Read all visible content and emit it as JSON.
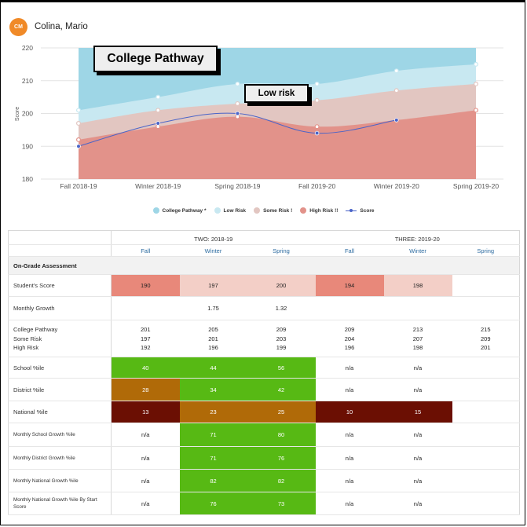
{
  "student": {
    "initials": "CM",
    "name": "Colina, Mario"
  },
  "colors": {
    "college_pathway": "#9ed6e6",
    "low_risk": "#c8e8f1",
    "some_risk": "#e2c6c1",
    "high_risk": "#e2928a",
    "score": "#4a64c8",
    "cell_very_high_risk": "#e8887a",
    "cell_some_risk": "#f3cfc7",
    "cell_green": "#57b914",
    "cell_orange": "#b06a08",
    "cell_dark_red": "#6b0f03"
  },
  "callouts": {
    "college_pathway": "College Pathway",
    "low_risk": "Low risk"
  },
  "chart_data": {
    "type": "area",
    "title": "",
    "xlabel": "",
    "ylabel": "Score",
    "ylim": [
      180,
      220
    ],
    "yticks": [
      "180",
      "190",
      "200",
      "210",
      "220"
    ],
    "grid": true,
    "legend_position": "bottom",
    "categories": [
      "Fall 2018-19",
      "Winter 2018-19",
      "Spring 2018-19",
      "Fall 2019-20",
      "Winter 2019-20",
      "Spring 2019-20"
    ],
    "series": [
      {
        "name": "College Pathway *",
        "kind": "area",
        "color": "#9ed6e6",
        "values": [
          220,
          220,
          220,
          220,
          220,
          220
        ]
      },
      {
        "name": "Low Risk",
        "kind": "area",
        "color": "#c8e8f1",
        "values": [
          201,
          205,
          209,
          209,
          213,
          215
        ]
      },
      {
        "name": "Some Risk !",
        "kind": "area",
        "color": "#e2c6c1",
        "values": [
          197,
          201,
          203,
          204,
          207,
          209
        ]
      },
      {
        "name": "High Risk !!",
        "kind": "area",
        "color": "#e2928a",
        "values": [
          192,
          196,
          199,
          196,
          198,
          201
        ]
      },
      {
        "name": "Score",
        "kind": "line",
        "color": "#4a64c8",
        "values": [
          190,
          197,
          200,
          194,
          198,
          null
        ]
      }
    ]
  },
  "table": {
    "years": [
      {
        "label": "TWO: 2018-19"
      },
      {
        "label": "THREE: 2019-20"
      }
    ],
    "seasons": [
      "Fall",
      "Winter",
      "Spring",
      "Fall",
      "Winter",
      "Spring"
    ],
    "section_label": "On-Grade Assessment",
    "students_score": {
      "label": "Student's Score",
      "values": [
        "190",
        "197",
        "200",
        "194",
        "198",
        ""
      ]
    },
    "monthly_growth": {
      "label": "Monthly Growth",
      "values": [
        "",
        "1.75",
        "1.32",
        "",
        "",
        ""
      ]
    },
    "benchmarks": [
      {
        "label": "College Pathway",
        "values": [
          "201",
          "205",
          "209",
          "209",
          "213",
          "215"
        ]
      },
      {
        "label": "Some Risk",
        "values": [
          "197",
          "201",
          "203",
          "204",
          "207",
          "209"
        ]
      },
      {
        "label": "High Risk",
        "values": [
          "192",
          "196",
          "199",
          "196",
          "198",
          "201"
        ]
      }
    ],
    "percentiles": [
      {
        "label": "School %ile",
        "values": [
          "40",
          "44",
          "56",
          "n/a",
          "n/a",
          ""
        ]
      },
      {
        "label": "District %ile",
        "values": [
          "28",
          "34",
          "42",
          "n/a",
          "n/a",
          ""
        ]
      },
      {
        "label": "National %ile",
        "values": [
          "13",
          "23",
          "25",
          "10",
          "15",
          ""
        ]
      },
      {
        "label": "Monthly School Growth %ile",
        "values": [
          "n/a",
          "71",
          "80",
          "n/a",
          "n/a",
          ""
        ]
      },
      {
        "label": "Monthly District Growth %ile",
        "values": [
          "n/a",
          "71",
          "76",
          "n/a",
          "n/a",
          ""
        ]
      },
      {
        "label": "Monthly National Growth %ile",
        "values": [
          "n/a",
          "82",
          "82",
          "n/a",
          "n/a",
          ""
        ]
      },
      {
        "label": "Monthly National Growth %ile By Start Score",
        "values": [
          "n/a",
          "76",
          "73",
          "n/a",
          "n/a",
          ""
        ]
      }
    ]
  }
}
